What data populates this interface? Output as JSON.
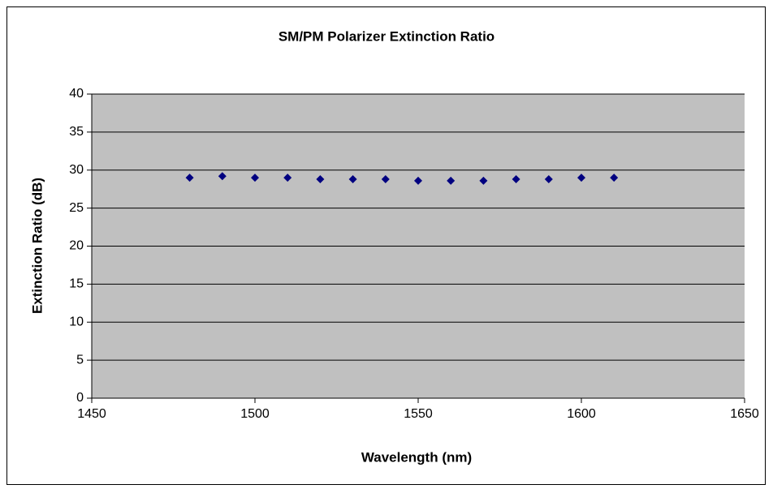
{
  "chart_data": {
    "type": "scatter",
    "title": "SM/PM Polarizer Extinction Ratio",
    "x_label": "Wavelength (nm)",
    "y_label": "Extinction Ratio (dB)",
    "x": [
      1480,
      1490,
      1500,
      1510,
      1520,
      1530,
      1540,
      1550,
      1560,
      1570,
      1580,
      1590,
      1600,
      1610
    ],
    "values": [
      29,
      29.2,
      29,
      29,
      28.8,
      28.8,
      28.8,
      28.6,
      28.6,
      28.6,
      28.8,
      28.8,
      29,
      29
    ],
    "color": "#000080",
    "xlim": [
      1450,
      1650
    ],
    "xticks": [
      1450,
      1500,
      1550,
      1600,
      1650
    ],
    "ylim": [
      0,
      40
    ],
    "yticks": [
      0,
      5,
      10,
      15,
      20,
      25,
      30,
      35,
      40
    ],
    "grid": true
  }
}
